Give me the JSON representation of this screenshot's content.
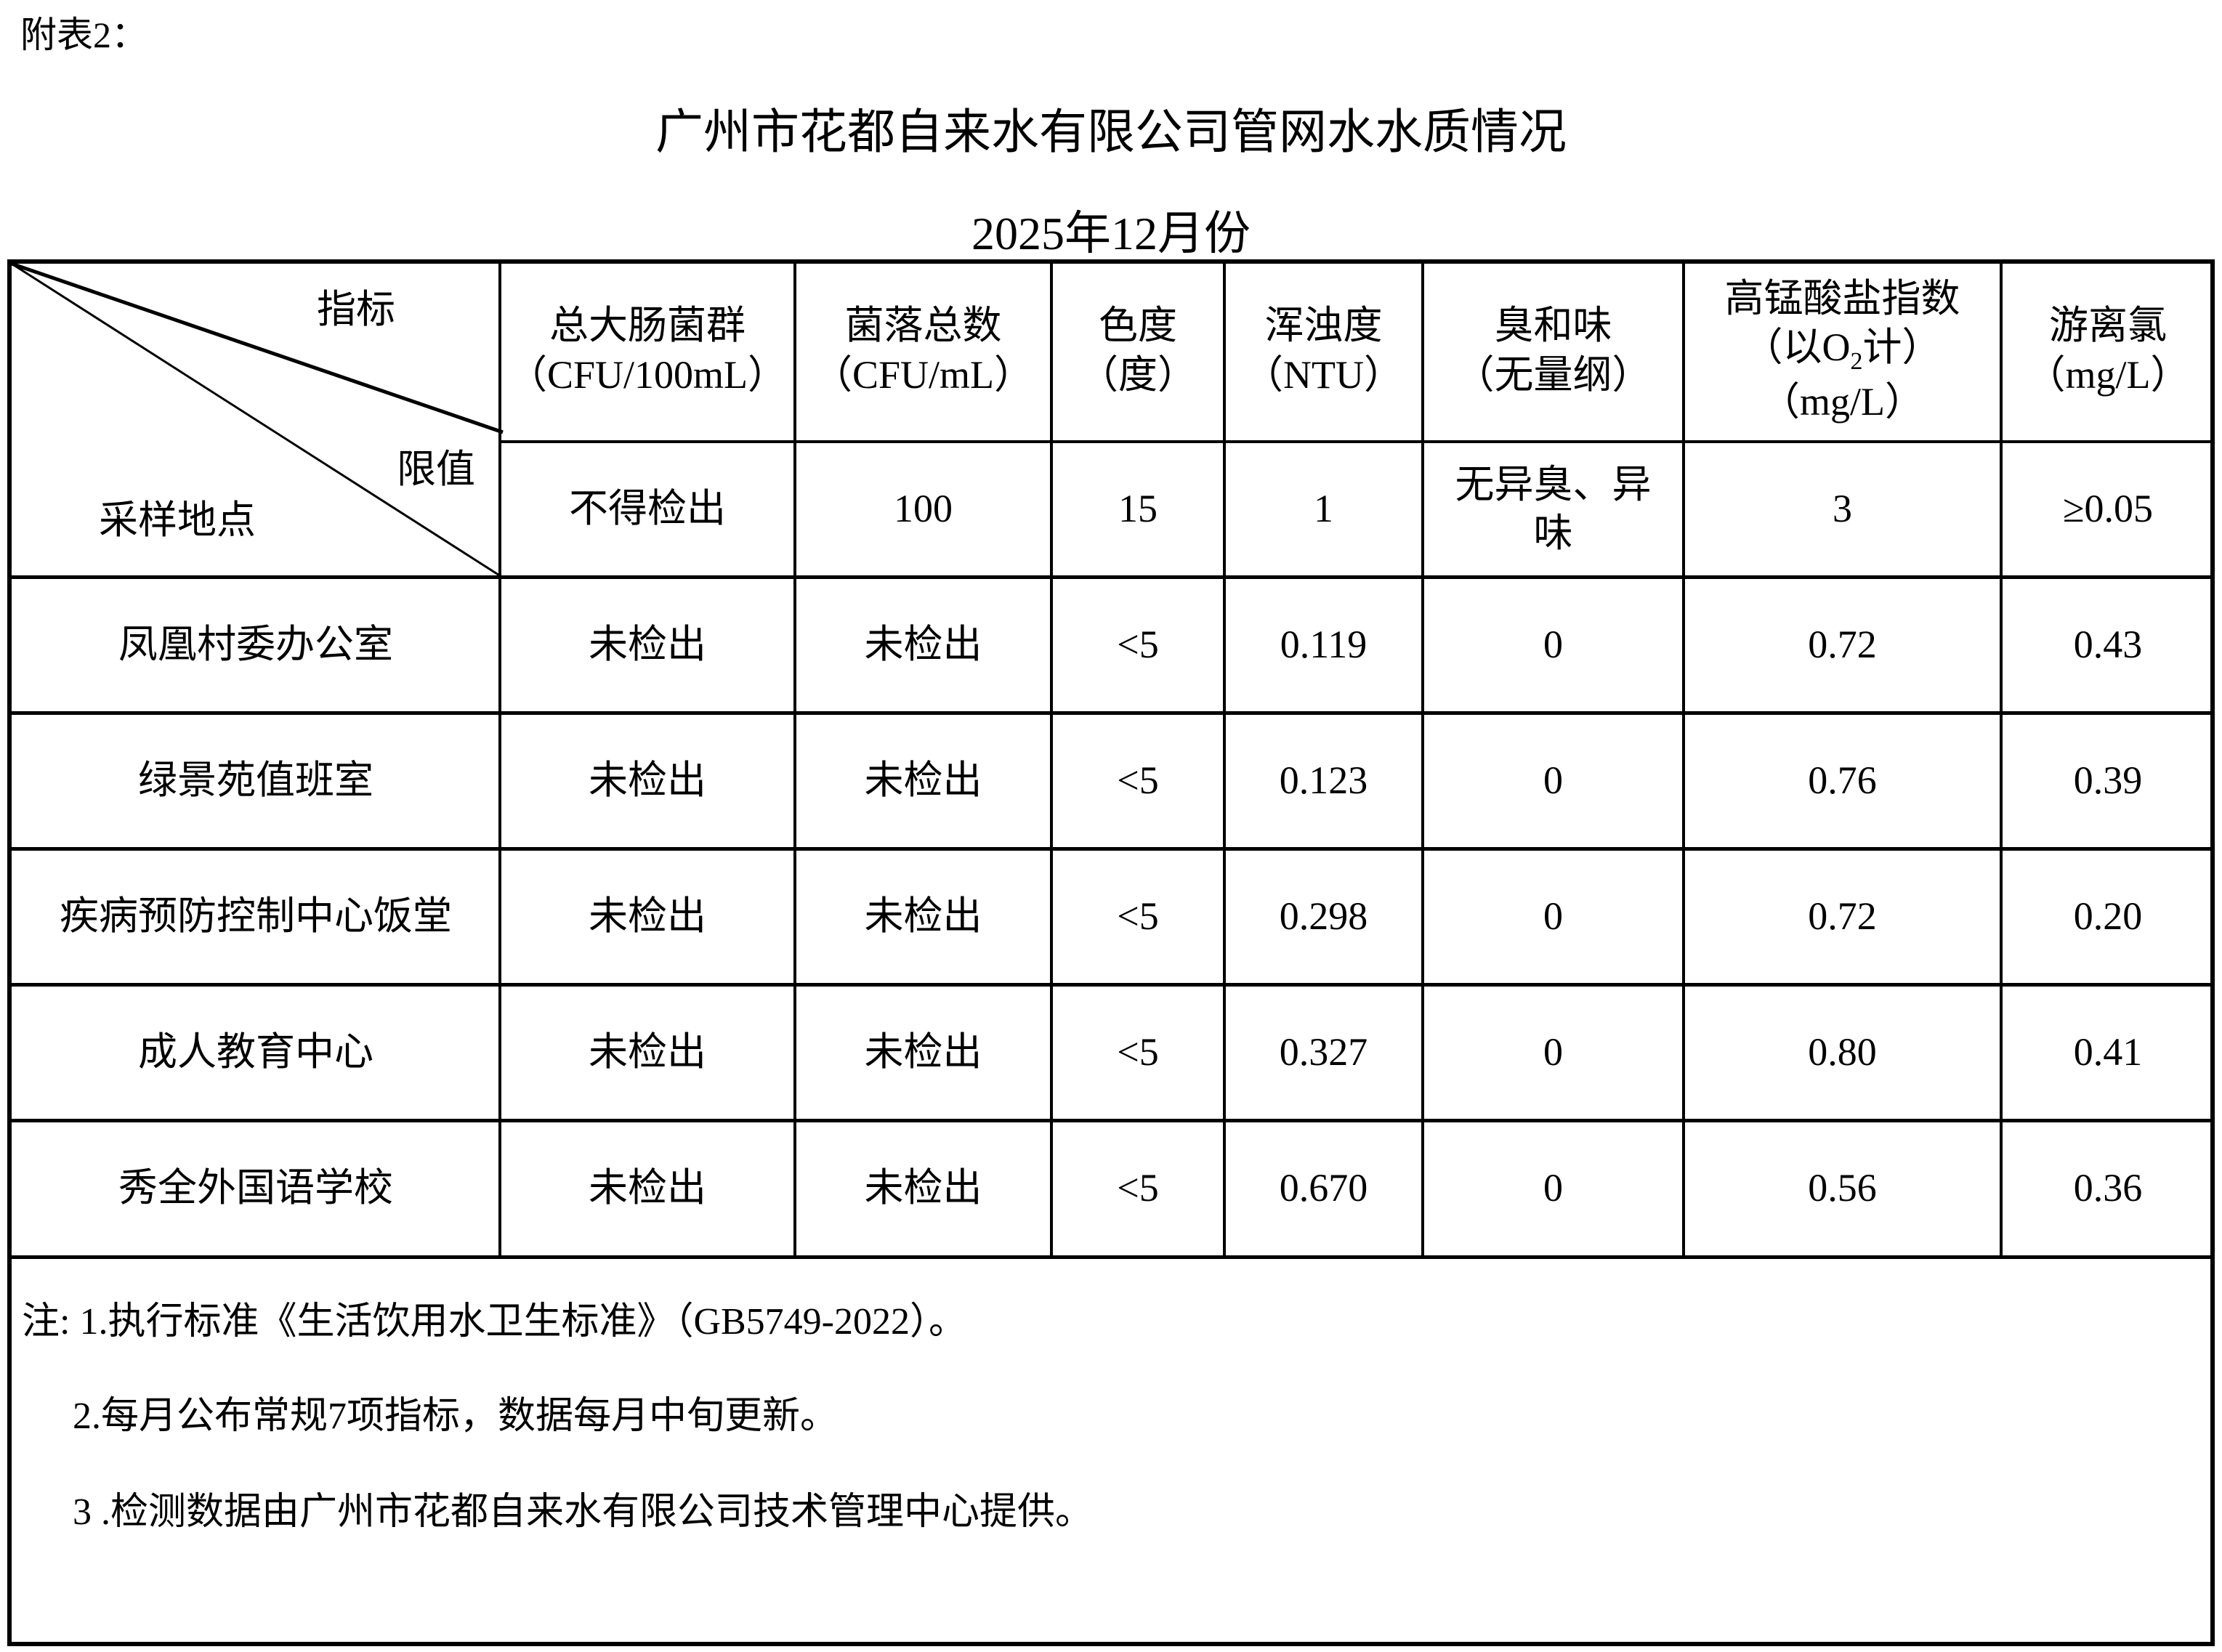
{
  "annex_label": "附表2：",
  "title": "广州市花都自来水有限公司管网水水质情况",
  "subtitle": "2025年12月份",
  "corner": {
    "indicator": "指标",
    "limit": "限值",
    "location": "采样地点"
  },
  "columns": [
    {
      "name": "总大肠菌群",
      "unit": "（CFU/100mL）",
      "limit": "不得检出"
    },
    {
      "name": "菌落总数",
      "unit": "（CFU/mL）",
      "limit": "100"
    },
    {
      "name": "色度",
      "unit": "（度）",
      "limit": "15"
    },
    {
      "name": "浑浊度",
      "unit": "（NTU）",
      "limit": "1"
    },
    {
      "name": "臭和味",
      "unit": "（无量纲）",
      "limit": "无异臭、异味"
    },
    {
      "name": "高锰酸盐指数",
      "unit_pre": "（以O",
      "unit_sub": "2",
      "unit_post": "计）",
      "unit2": "（mg/L）",
      "limit": "3"
    },
    {
      "name": "游离氯",
      "unit": "（mg/L）",
      "limit": "≥0.05"
    }
  ],
  "rows": [
    {
      "location": "凤凰村委办公室",
      "values": [
        "未检出",
        "未检出",
        "<5",
        "0.119",
        "0",
        "0.72",
        "0.43"
      ]
    },
    {
      "location": "绿景苑值班室",
      "values": [
        "未检出",
        "未检出",
        "<5",
        "0.123",
        "0",
        "0.76",
        "0.39"
      ]
    },
    {
      "location": "疾病预防控制中心饭堂",
      "values": [
        "未检出",
        "未检出",
        "<5",
        "0.298",
        "0",
        "0.72",
        "0.20"
      ]
    },
    {
      "location": "成人教育中心",
      "values": [
        "未检出",
        "未检出",
        "<5",
        "0.327",
        "0",
        "0.80",
        "0.41"
      ]
    },
    {
      "location": "秀全外国语学校",
      "values": [
        "未检出",
        "未检出",
        "<5",
        "0.670",
        "0",
        "0.56",
        "0.36"
      ]
    }
  ],
  "notes": [
    "注: 1.执行标准《生活饮用水卫生标准》（GB5749-2022）。",
    "2.每月公布常规7项指标，数据每月中旬更新。",
    "3 .检测数据由广州市花都自来水有限公司技术管理中心提供。"
  ]
}
